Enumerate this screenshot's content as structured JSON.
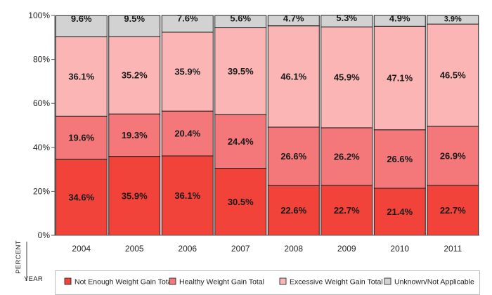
{
  "chart_data": {
    "type": "bar",
    "stacked": true,
    "categories": [
      "2004",
      "2005",
      "2006",
      "2007",
      "2008",
      "2009",
      "2010",
      "2011"
    ],
    "series": [
      {
        "name": "Not Enough Weight Gain Total",
        "color": "#f2433b",
        "values": [
          34.6,
          35.9,
          36.1,
          30.5,
          22.6,
          22.7,
          21.4,
          22.7
        ]
      },
      {
        "name": "Healthy Weight Gain Total",
        "color": "#f4787a",
        "values": [
          19.6,
          19.3,
          20.4,
          24.4,
          26.6,
          26.2,
          26.6,
          26.9
        ]
      },
      {
        "name": "Excessive Weight Gain Total",
        "color": "#fbb5b5",
        "values": [
          36.1,
          35.2,
          35.9,
          39.5,
          46.1,
          45.9,
          47.1,
          46.5
        ]
      },
      {
        "name": "Unknown/Not Applicable",
        "color": "#d2d2d2",
        "values": [
          9.6,
          9.5,
          7.6,
          5.6,
          4.7,
          5.3,
          4.9,
          3.9
        ]
      }
    ],
    "y_ticks": [
      "0%",
      "20%",
      "40%",
      "60%",
      "80%",
      "100%"
    ],
    "ylim": [
      0,
      100
    ],
    "ylabel": "PERCENT",
    "xlabel": "YEAR",
    "grid": false,
    "legend_position": "bottom"
  }
}
